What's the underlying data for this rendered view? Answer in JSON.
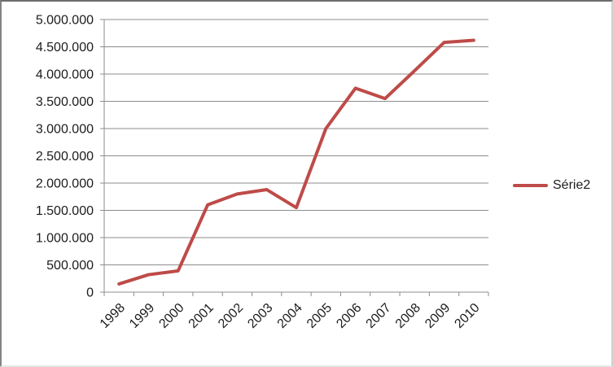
{
  "chart_data": {
    "type": "line",
    "title": "",
    "xlabel": "",
    "ylabel": "",
    "categories": [
      "1998",
      "1999",
      "2000",
      "2001",
      "2002",
      "2003",
      "2004",
      "2005",
      "2006",
      "2007",
      "2008",
      "2009",
      "2010"
    ],
    "series": [
      {
        "name": "Série2",
        "color": "#BE4B48",
        "values": [
          150000,
          320000,
          390000,
          1600000,
          1800000,
          1880000,
          1550000,
          3000000,
          3740000,
          3550000,
          4060000,
          4580000,
          4620000
        ]
      }
    ],
    "ylim": [
      0,
      5000000
    ],
    "ytick_step": 500000,
    "ytick_labels": [
      "0",
      "500.000",
      "1.000.000",
      "1.500.000",
      "2.000.000",
      "2.500.000",
      "3.000.000",
      "3.500.000",
      "4.000.000",
      "4.500.000",
      "5.000.000"
    ],
    "grid": true,
    "legend_position": "right-middle",
    "x_tick_label_rotation": -45
  },
  "legend": {
    "label": "Série2"
  },
  "colors": {
    "series": "#BE4B48",
    "gridline": "#8c8c8c",
    "axis": "#8c8c8c",
    "text": "#1c1c1c",
    "background": "#ffffff"
  }
}
